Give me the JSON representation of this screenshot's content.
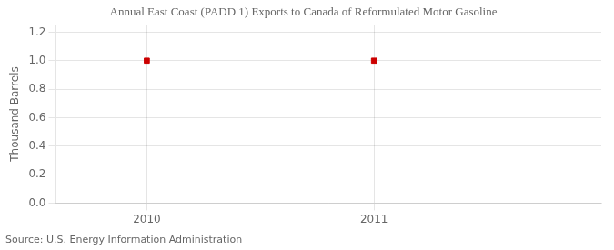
{
  "chart_data": {
    "type": "scatter",
    "title": "Annual East Coast (PADD 1) Exports to Canada of Reformulated Motor Gasoline",
    "ylabel": "Thousand Barrels",
    "source": "Source: U.S. Energy Information Administration",
    "x": [
      2010,
      2011
    ],
    "values": [
      1.0,
      1.0
    ],
    "color": "#cc0000",
    "marker": "square",
    "xlim": [
      2009.6,
      2012.0
    ],
    "ylim": [
      0.0,
      1.25
    ],
    "xticks": [
      2010,
      2011
    ],
    "yticks": [
      {
        "value": 0,
        "label": "0.0"
      },
      0.2,
      0.4,
      0.6,
      0.8,
      {
        "value": 1,
        "label": "1.0"
      },
      1.2
    ],
    "grid": true
  }
}
